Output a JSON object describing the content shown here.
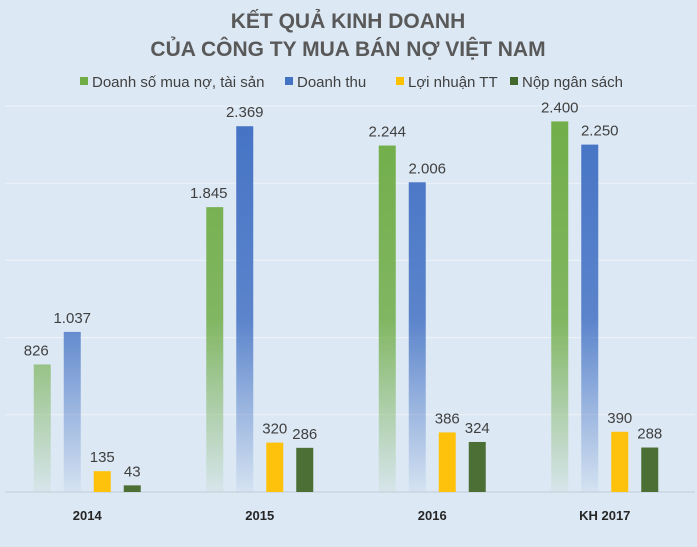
{
  "chart_data": {
    "type": "bar",
    "title": [
      "KẾT QUẢ KINH DOANH",
      "CỦA CÔNG TY MUA BÁN NỢ VIỆT NAM"
    ],
    "categories": [
      "2014",
      "2015",
      "2016",
      "KH 2017"
    ],
    "series": [
      {
        "name": "Doanh số mua nợ, tài sản",
        "color": "#70ad47",
        "values": [
          826,
          1845,
          2244,
          2400
        ],
        "labels": [
          "826",
          "1.845",
          "2.244",
          "2.400"
        ]
      },
      {
        "name": "Doanh thu",
        "color": "#4472c4",
        "values": [
          1037,
          2369,
          2006,
          2250
        ],
        "labels": [
          "1.037",
          "2.369",
          "2.006",
          "2.250"
        ]
      },
      {
        "name": "Lợi nhuận TT",
        "color": "#ffc000",
        "values": [
          135,
          320,
          386,
          390
        ],
        "labels": [
          "135",
          "320",
          "386",
          "390"
        ]
      },
      {
        "name": "Nộp ngân sách",
        "color": "#43682b",
        "values": [
          43,
          286,
          324,
          288
        ],
        "labels": [
          "43",
          "286",
          "324",
          "288"
        ]
      }
    ],
    "ylim": [
      0,
      2500
    ],
    "ytick_step": 500,
    "grid": true,
    "legend": "top",
    "xlabel": "",
    "ylabel": ""
  }
}
